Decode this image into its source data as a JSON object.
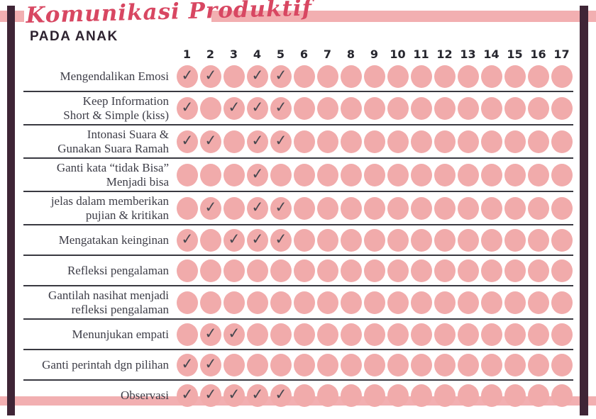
{
  "header": {
    "title": "Komunikasi Produktif",
    "subtitle": "PADA ANAK"
  },
  "check_glyph": "✓",
  "colors": {
    "circle_pink": "#f1abab",
    "bar_pink": "#f2afb1",
    "frame_dark": "#3f2536",
    "title_pink": "#d84762",
    "subtitle_dark": "#2e2330",
    "label_text": "#3d3d47",
    "check_dark": "#47474f",
    "day_number": "#26262e"
  },
  "chart_data": {
    "type": "table",
    "title": "Komunikasi Produktif PADA ANAK",
    "columns": [
      "1",
      "2",
      "3",
      "4",
      "5",
      "6",
      "7",
      "8",
      "9",
      "10",
      "11",
      "12",
      "13",
      "14",
      "15",
      "16",
      "17"
    ],
    "rows": [
      {
        "label": "Mengendalikan Emosi",
        "lines": [
          "Mengendalikan Emosi"
        ],
        "checked_days": [
          1,
          2,
          4,
          5
        ]
      },
      {
        "label": "Keep Information Short & Simple (kiss)",
        "lines": [
          "Keep Information",
          "Short & Simple (kiss)"
        ],
        "checked_days": [
          1,
          3,
          4,
          5
        ]
      },
      {
        "label": "Intonasi Suara & Gunakan Suara Ramah",
        "lines": [
          "Intonasi Suara &",
          "Gunakan Suara Ramah"
        ],
        "checked_days": [
          1,
          2,
          4,
          5
        ]
      },
      {
        "label": "Ganti kata “tidak Bisa” Menjadi bisa",
        "lines": [
          "Ganti kata “tidak Bisa”",
          "Menjadi bisa"
        ],
        "checked_days": [
          4
        ]
      },
      {
        "label": "jelas dalam memberikan pujian & kritikan",
        "lines": [
          "jelas dalam memberikan",
          "pujian & kritikan"
        ],
        "checked_days": [
          2,
          4,
          5
        ]
      },
      {
        "label": "Mengatakan keinginan",
        "lines": [
          "Mengatakan keinginan"
        ],
        "checked_days": [
          1,
          3,
          4,
          5
        ]
      },
      {
        "label": "Refleksi pengalaman",
        "lines": [
          "Refleksi pengalaman"
        ],
        "checked_days": []
      },
      {
        "label": "Gantilah nasihat menjadi refleksi pengalaman",
        "lines": [
          "Gantilah nasihat menjadi",
          "refleksi pengalaman"
        ],
        "checked_days": []
      },
      {
        "label": "Menunjukan empati",
        "lines": [
          "Menunjukan empati"
        ],
        "checked_days": [
          2,
          3
        ]
      },
      {
        "label": "Ganti perintah dgn pilihan",
        "lines": [
          "Ganti perintah dgn pilihan"
        ],
        "checked_days": [
          1,
          2
        ]
      },
      {
        "label": "Observasi",
        "lines": [
          "Observasi"
        ],
        "checked_days": [
          1,
          2,
          3,
          4,
          5
        ]
      }
    ]
  }
}
